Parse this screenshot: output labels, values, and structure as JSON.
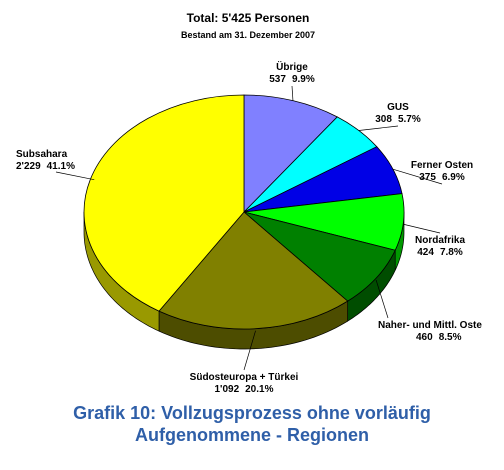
{
  "chart_data": {
    "type": "pie",
    "title": "Total: 5'425 Personen",
    "subtitle": "Bestand am 31. Dezember 2007",
    "caption": "Grafik 10: Vollzugsprozess ohne vorläufig Aufgenommene - Regionen",
    "categories": [
      "Übrige",
      "GUS",
      "Ferner Osten",
      "Nordafrika",
      "Naher- und Mittl. Oste",
      "Südosteuropa + Türkei",
      "Subsahara"
    ],
    "values": [
      537,
      308,
      375,
      424,
      460,
      1092,
      2229
    ],
    "value_labels": [
      "537",
      "308",
      "375",
      "424",
      "460",
      "1'092",
      "2'229"
    ],
    "percents": [
      9.9,
      5.7,
      6.9,
      7.8,
      8.5,
      20.1,
      41.1
    ],
    "percent_labels": [
      "9.9%",
      "5.7%",
      "6.9%",
      "7.8%",
      "8.5%",
      "20.1%",
      "41.1%"
    ],
    "colors": [
      "#8080ff",
      "#00ffff",
      "#0000e6",
      "#00ff00",
      "#008000",
      "#808000",
      "#ffff00"
    ]
  }
}
